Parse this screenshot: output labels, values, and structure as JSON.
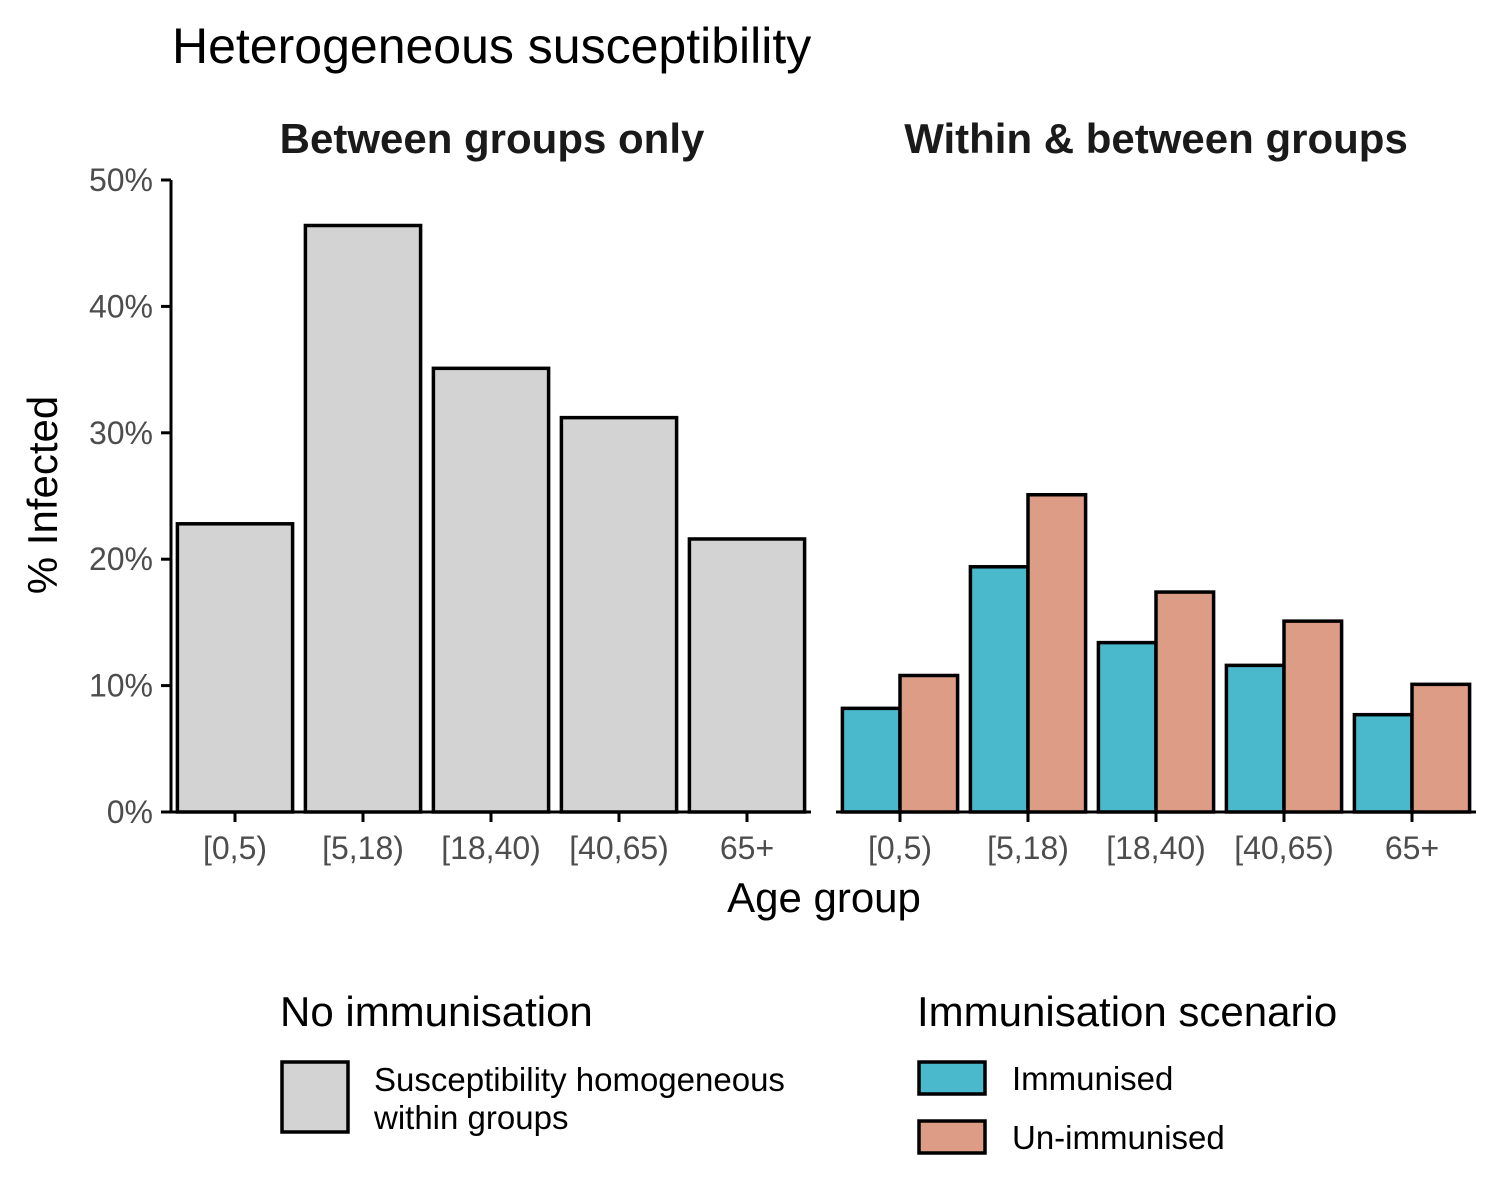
{
  "chart_data": {
    "type": "bar",
    "title": "Heterogeneous susceptibility",
    "xlabel": "Age group",
    "ylabel": "% Infected",
    "ylim": [
      0,
      50
    ],
    "yticks": [
      "0%",
      "10%",
      "20%",
      "30%",
      "40%",
      "50%"
    ],
    "categories": [
      "[0,5)",
      "[5,18)",
      "[18,40)",
      "[40,65)",
      "65+"
    ],
    "grid": false,
    "facets": [
      {
        "strip": "Between groups only",
        "series": [
          {
            "name": "Susceptibility homogeneous within groups",
            "values": [
              22.8,
              46.4,
              35.1,
              31.2,
              21.6
            ]
          }
        ]
      },
      {
        "strip": "Within & between groups",
        "series": [
          {
            "name": "Immunised",
            "values": [
              8.2,
              19.4,
              13.4,
              11.6,
              7.7
            ]
          },
          {
            "name": "Un-immunised",
            "values": [
              10.8,
              25.1,
              17.4,
              15.1,
              10.1
            ]
          }
        ]
      }
    ],
    "legends": [
      {
        "title": "No immunisation",
        "items": [
          {
            "label_lines": [
              "Susceptibility homogeneous",
              "within groups"
            ],
            "color": "#d3d3d3"
          }
        ]
      },
      {
        "title": "Immunisation scenario",
        "items": [
          {
            "label_lines": [
              "Immunised"
            ],
            "color": "#4ab9cc"
          },
          {
            "label_lines": [
              "Un-immunised"
            ],
            "color": "#dc9c85"
          }
        ]
      }
    ],
    "legend_position": "bottom"
  }
}
